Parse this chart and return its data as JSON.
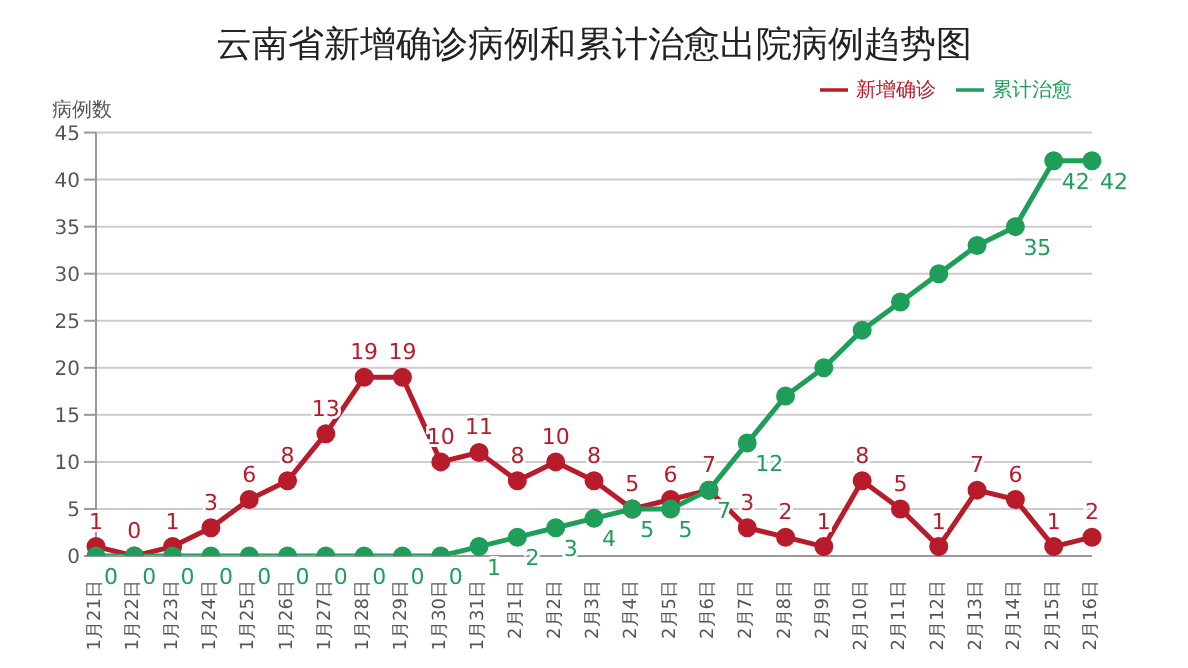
{
  "chart_data": {
    "type": "line",
    "title": "云南省新增确诊病例和累计治愈出院病例趋势图",
    "ylabel": "病例数",
    "categories": [
      "1月21日",
      "1月22日",
      "1月23日",
      "1月24日",
      "1月25日",
      "1月26日",
      "1月27日",
      "1月28日",
      "1月29日",
      "1月30日",
      "1月31日",
      "2月1日",
      "2月2日",
      "2月3日",
      "2月4日",
      "2月5日",
      "2月6日",
      "2月7日",
      "2月8日",
      "2月9日",
      "2月10日",
      "2月11日",
      "2月12日",
      "2月13日",
      "2月14日",
      "2月15日",
      "2月16日"
    ],
    "series": [
      {
        "name": "新增确诊",
        "color": "#b81c2b",
        "values": [
          1,
          0,
          1,
          3,
          6,
          8,
          13,
          19,
          19,
          10,
          11,
          8,
          10,
          8,
          5,
          6,
          7,
          3,
          2,
          1,
          8,
          5,
          1,
          7,
          6,
          1,
          2
        ],
        "value_labels": [
          "1",
          "0",
          "1",
          "3",
          "6",
          "8",
          "13",
          "19",
          "19",
          "10",
          "11",
          "8",
          "10",
          "8",
          "5",
          "6",
          "7",
          "3",
          "2",
          "1",
          "8",
          "5",
          "1",
          "7",
          "6",
          "1",
          "2"
        ]
      },
      {
        "name": "累计治愈",
        "color": "#1f9e5a",
        "values": [
          0,
          0,
          0,
          0,
          0,
          0,
          0,
          0,
          0,
          0,
          1,
          2,
          3,
          4,
          5,
          5,
          7,
          12,
          17,
          20,
          24,
          27,
          30,
          33,
          35,
          42,
          42
        ],
        "value_labels": [
          "0",
          "0",
          "0",
          "0",
          "0",
          "0",
          "0",
          "0",
          "0",
          "0",
          "1",
          "2",
          "3",
          "4",
          "5",
          "5",
          "7",
          "12",
          null,
          null,
          null,
          null,
          null,
          null,
          "35",
          "42",
          "42"
        ]
      }
    ],
    "ylim": [
      0,
      45
    ],
    "yticks": [
      0,
      5,
      10,
      15,
      20,
      25,
      30,
      35,
      40,
      45
    ],
    "grid": "y",
    "legend": "top right",
    "marker": "circle",
    "line_style": "solid"
  }
}
